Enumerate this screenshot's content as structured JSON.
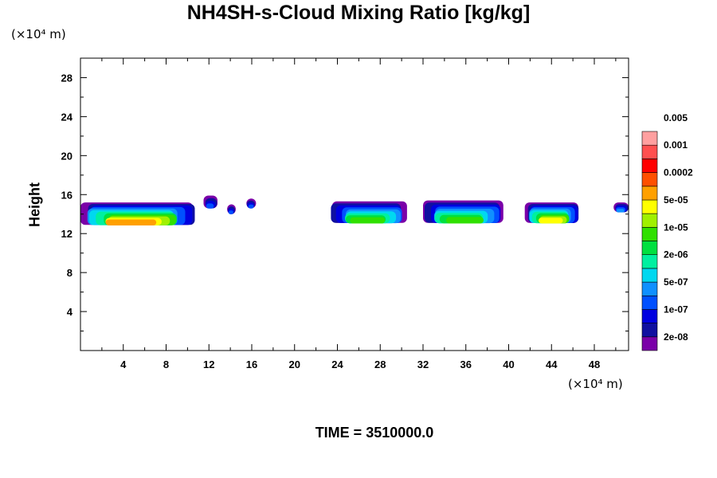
{
  "chart_data": {
    "type": "heatmap",
    "title": "NH4SH-s-Cloud Mixing Ratio [kg/kg]",
    "ylabel": "Height",
    "x_unit_label": "(×10⁴ m)",
    "y_unit_label": "(×10⁴ m)",
    "footer": "TIME = 3510000.0",
    "xlim": [
      0,
      51.2
    ],
    "ylim": [
      0,
      30
    ],
    "x_ticks": [
      4,
      8,
      12,
      16,
      20,
      24,
      28,
      32,
      36,
      40,
      44,
      48
    ],
    "y_ticks": [
      4,
      8,
      12,
      16,
      20,
      24,
      28
    ],
    "colorbar": {
      "colors": [
        "#7a00a8",
        "#1010a0",
        "#0000e0",
        "#0050ff",
        "#1090ff",
        "#00d8f0",
        "#00f0a0",
        "#00e040",
        "#30e000",
        "#a0f000",
        "#ffff00",
        "#ffa000",
        "#ff5000",
        "#ff0000",
        "#ff5050",
        "#ffa0a0"
      ],
      "labels": [
        "2e-08",
        "1e-07",
        "5e-07",
        "2e-06",
        "1e-05",
        "5e-05",
        "0.0002",
        "0.001",
        "0.005"
      ]
    },
    "clouds": [
      {
        "x0": 0.0,
        "x1": 10.5,
        "top": 15.2,
        "bottom": 12.9,
        "peak": 11
      },
      {
        "x0": 11.5,
        "x1": 12.8,
        "top": 15.9,
        "bottom": 14.6,
        "peak": 3
      },
      {
        "x0": 13.7,
        "x1": 14.5,
        "top": 15.0,
        "bottom": 14.0,
        "peak": 3
      },
      {
        "x0": 15.5,
        "x1": 16.4,
        "top": 15.6,
        "bottom": 14.6,
        "peak": 3
      },
      {
        "x0": 23.5,
        "x1": 30.5,
        "top": 15.3,
        "bottom": 13.1,
        "peak": 8
      },
      {
        "x0": 32.0,
        "x1": 39.5,
        "top": 15.4,
        "bottom": 13.1,
        "peak": 8
      },
      {
        "x0": 41.5,
        "x1": 46.5,
        "top": 15.2,
        "bottom": 13.1,
        "peak": 10
      },
      {
        "x0": 49.8,
        "x1": 51.2,
        "top": 15.2,
        "bottom": 14.2,
        "peak": 4
      }
    ]
  }
}
